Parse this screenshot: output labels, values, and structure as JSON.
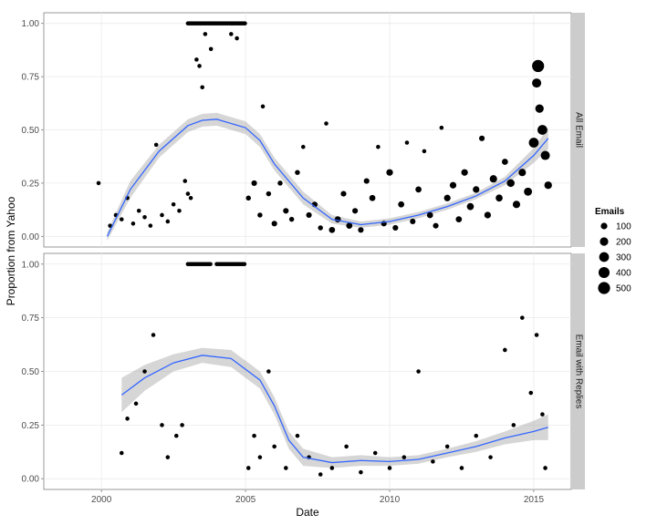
{
  "chart_data": {
    "type": "scatter",
    "title": "",
    "xlabel": "Date",
    "ylabel": "Proportion from Yahoo",
    "xlim": [
      1998.0,
      2016.3
    ],
    "ylim": [
      -0.05,
      1.05
    ],
    "x_ticks": [
      2000,
      2005,
      2010,
      2015
    ],
    "x_tick_labels": [
      "2000",
      "2005",
      "2010",
      "2015"
    ],
    "y_ticks": [
      0,
      0.25,
      0.5,
      0.75,
      1.0
    ],
    "y_tick_labels": [
      "0.00",
      "0.25",
      "0.50",
      "0.75",
      "1.00"
    ],
    "grid": true,
    "legend": {
      "title": "Emails",
      "position": "right",
      "entries": [
        {
          "label": "100",
          "value": 100
        },
        {
          "label": "200",
          "value": 200
        },
        {
          "label": "300",
          "value": 300
        },
        {
          "label": "400",
          "value": 400
        },
        {
          "label": "500",
          "value": 500
        }
      ]
    },
    "colors": {
      "points": "#000000",
      "smooth_line": "#3366FF",
      "ribbon": "#999999",
      "strip": "#cccccc",
      "grid": "#ebebeb"
    },
    "facets": [
      {
        "strip_label": "All Email",
        "smooth": {
          "x": [
            2000.2,
            2001,
            2002,
            2003,
            2003.5,
            2004,
            2005,
            2005.5,
            2006,
            2007,
            2008,
            2009,
            2010,
            2011,
            2012,
            2013,
            2014,
            2015,
            2015.5
          ],
          "y": [
            0.0,
            0.22,
            0.4,
            0.52,
            0.545,
            0.55,
            0.51,
            0.45,
            0.34,
            0.18,
            0.08,
            0.055,
            0.07,
            0.1,
            0.14,
            0.19,
            0.26,
            0.38,
            0.46
          ],
          "lower": [
            -0.02,
            0.18,
            0.37,
            0.49,
            0.515,
            0.52,
            0.48,
            0.42,
            0.31,
            0.15,
            0.06,
            0.04,
            0.055,
            0.085,
            0.125,
            0.175,
            0.24,
            0.345,
            0.41
          ],
          "upper": [
            0.02,
            0.26,
            0.43,
            0.55,
            0.575,
            0.58,
            0.54,
            0.48,
            0.37,
            0.21,
            0.1,
            0.07,
            0.085,
            0.115,
            0.155,
            0.205,
            0.28,
            0.415,
            0.51
          ]
        },
        "points": [
          {
            "x": 1999.9,
            "y": 0.25,
            "n": 20
          },
          {
            "x": 2000.3,
            "y": 0.05,
            "n": 20
          },
          {
            "x": 2000.5,
            "y": 0.1,
            "n": 20
          },
          {
            "x": 2000.7,
            "y": 0.08,
            "n": 20
          },
          {
            "x": 2000.9,
            "y": 0.18,
            "n": 20
          },
          {
            "x": 2001.1,
            "y": 0.06,
            "n": 20
          },
          {
            "x": 2001.3,
            "y": 0.12,
            "n": 20
          },
          {
            "x": 2001.5,
            "y": 0.09,
            "n": 20
          },
          {
            "x": 2001.7,
            "y": 0.05,
            "n": 20
          },
          {
            "x": 2001.9,
            "y": 0.43,
            "n": 20
          },
          {
            "x": 2002.1,
            "y": 0.1,
            "n": 20
          },
          {
            "x": 2002.3,
            "y": 0.07,
            "n": 20
          },
          {
            "x": 2002.5,
            "y": 0.15,
            "n": 20
          },
          {
            "x": 2002.7,
            "y": 0.12,
            "n": 20
          },
          {
            "x": 2002.9,
            "y": 0.26,
            "n": 20
          },
          {
            "x": 2003.0,
            "y": 0.2,
            "n": 20
          },
          {
            "x": 2003.1,
            "y": 0.18,
            "n": 20
          },
          {
            "x": 2003.3,
            "y": 0.83,
            "n": 20
          },
          {
            "x": 2003.4,
            "y": 0.8,
            "n": 20
          },
          {
            "x": 2003.5,
            "y": 0.7,
            "n": 20
          },
          {
            "x": 2003.6,
            "y": 0.95,
            "n": 20
          },
          {
            "x": 2003.8,
            "y": 0.88,
            "n": 20
          },
          {
            "x": 2004.5,
            "y": 0.95,
            "n": 20
          },
          {
            "x": 2004.7,
            "y": 0.93,
            "n": 20
          },
          {
            "x": 2005.1,
            "y": 0.18,
            "n": 40
          },
          {
            "x": 2005.3,
            "y": 0.25,
            "n": 60
          },
          {
            "x": 2005.5,
            "y": 0.1,
            "n": 40
          },
          {
            "x": 2005.6,
            "y": 0.61,
            "n": 20
          },
          {
            "x": 2005.8,
            "y": 0.2,
            "n": 40
          },
          {
            "x": 2006.0,
            "y": 0.06,
            "n": 60
          },
          {
            "x": 2006.2,
            "y": 0.25,
            "n": 40
          },
          {
            "x": 2006.4,
            "y": 0.12,
            "n": 60
          },
          {
            "x": 2006.6,
            "y": 0.08,
            "n": 40
          },
          {
            "x": 2006.8,
            "y": 0.3,
            "n": 40
          },
          {
            "x": 2007.0,
            "y": 0.42,
            "n": 20
          },
          {
            "x": 2007.2,
            "y": 0.1,
            "n": 60
          },
          {
            "x": 2007.4,
            "y": 0.15,
            "n": 60
          },
          {
            "x": 2007.6,
            "y": 0.04,
            "n": 40
          },
          {
            "x": 2007.8,
            "y": 0.53,
            "n": 20
          },
          {
            "x": 2008.0,
            "y": 0.03,
            "n": 80
          },
          {
            "x": 2008.2,
            "y": 0.08,
            "n": 80
          },
          {
            "x": 2008.4,
            "y": 0.2,
            "n": 60
          },
          {
            "x": 2008.6,
            "y": 0.05,
            "n": 80
          },
          {
            "x": 2008.8,
            "y": 0.12,
            "n": 60
          },
          {
            "x": 2009.0,
            "y": 0.03,
            "n": 60
          },
          {
            "x": 2009.2,
            "y": 0.26,
            "n": 60
          },
          {
            "x": 2009.4,
            "y": 0.18,
            "n": 80
          },
          {
            "x": 2009.6,
            "y": 0.42,
            "n": 20
          },
          {
            "x": 2009.8,
            "y": 0.06,
            "n": 60
          },
          {
            "x": 2010.0,
            "y": 0.3,
            "n": 100
          },
          {
            "x": 2010.2,
            "y": 0.04,
            "n": 60
          },
          {
            "x": 2010.4,
            "y": 0.15,
            "n": 80
          },
          {
            "x": 2010.6,
            "y": 0.44,
            "n": 20
          },
          {
            "x": 2010.8,
            "y": 0.07,
            "n": 60
          },
          {
            "x": 2011.0,
            "y": 0.22,
            "n": 80
          },
          {
            "x": 2011.2,
            "y": 0.4,
            "n": 20
          },
          {
            "x": 2011.4,
            "y": 0.1,
            "n": 80
          },
          {
            "x": 2011.6,
            "y": 0.05,
            "n": 60
          },
          {
            "x": 2011.8,
            "y": 0.51,
            "n": 20
          },
          {
            "x": 2012.0,
            "y": 0.18,
            "n": 100
          },
          {
            "x": 2012.2,
            "y": 0.24,
            "n": 100
          },
          {
            "x": 2012.4,
            "y": 0.08,
            "n": 80
          },
          {
            "x": 2012.6,
            "y": 0.3,
            "n": 100
          },
          {
            "x": 2012.8,
            "y": 0.14,
            "n": 120
          },
          {
            "x": 2013.0,
            "y": 0.22,
            "n": 100
          },
          {
            "x": 2013.2,
            "y": 0.46,
            "n": 60
          },
          {
            "x": 2013.4,
            "y": 0.1,
            "n": 100
          },
          {
            "x": 2013.6,
            "y": 0.27,
            "n": 140
          },
          {
            "x": 2013.8,
            "y": 0.18,
            "n": 120
          },
          {
            "x": 2014.0,
            "y": 0.35,
            "n": 80
          },
          {
            "x": 2014.2,
            "y": 0.25,
            "n": 160
          },
          {
            "x": 2014.4,
            "y": 0.15,
            "n": 140
          },
          {
            "x": 2014.6,
            "y": 0.3,
            "n": 140
          },
          {
            "x": 2014.8,
            "y": 0.21,
            "n": 180
          },
          {
            "x": 2015.0,
            "y": 0.44,
            "n": 300
          },
          {
            "x": 2015.1,
            "y": 0.72,
            "n": 250
          },
          {
            "x": 2015.15,
            "y": 0.8,
            "n": 500
          },
          {
            "x": 2015.2,
            "y": 0.6,
            "n": 200
          },
          {
            "x": 2015.3,
            "y": 0.5,
            "n": 300
          },
          {
            "x": 2015.4,
            "y": 0.38,
            "n": 250
          },
          {
            "x": 2015.5,
            "y": 0.24,
            "n": 150
          }
        ],
        "band_points": [
          {
            "x_start": 2003.0,
            "x_end": 2005.0,
            "y": 1.0,
            "n": 20
          }
        ]
      },
      {
        "strip_label": "Email with Replies",
        "smooth": {
          "x": [
            2000.7,
            2001.5,
            2002.5,
            2003.5,
            2004.5,
            2005.5,
            2006.0,
            2006.5,
            2007.0,
            2008.0,
            2009.0,
            2010.0,
            2011.0,
            2012.0,
            2013.0,
            2014.0,
            2015.0,
            2015.5
          ],
          "y": [
            0.39,
            0.47,
            0.54,
            0.575,
            0.56,
            0.46,
            0.34,
            0.18,
            0.1,
            0.075,
            0.085,
            0.08,
            0.09,
            0.12,
            0.15,
            0.19,
            0.22,
            0.24
          ],
          "lower": [
            0.31,
            0.41,
            0.5,
            0.54,
            0.52,
            0.42,
            0.3,
            0.14,
            0.06,
            0.05,
            0.06,
            0.06,
            0.07,
            0.1,
            0.125,
            0.16,
            0.18,
            0.18
          ],
          "upper": [
            0.47,
            0.53,
            0.58,
            0.61,
            0.6,
            0.5,
            0.38,
            0.22,
            0.14,
            0.1,
            0.11,
            0.1,
            0.11,
            0.14,
            0.175,
            0.22,
            0.27,
            0.3
          ]
        },
        "points": [
          {
            "x": 2000.7,
            "y": 0.12,
            "n": 20
          },
          {
            "x": 2000.9,
            "y": 0.28,
            "n": 20
          },
          {
            "x": 2001.2,
            "y": 0.35,
            "n": 20
          },
          {
            "x": 2001.5,
            "y": 0.5,
            "n": 20
          },
          {
            "x": 2001.8,
            "y": 0.67,
            "n": 20
          },
          {
            "x": 2002.1,
            "y": 0.25,
            "n": 20
          },
          {
            "x": 2002.3,
            "y": 0.1,
            "n": 20
          },
          {
            "x": 2002.6,
            "y": 0.2,
            "n": 20
          },
          {
            "x": 2002.8,
            "y": 0.25,
            "n": 20
          },
          {
            "x": 2005.1,
            "y": 0.05,
            "n": 20
          },
          {
            "x": 2005.3,
            "y": 0.2,
            "n": 20
          },
          {
            "x": 2005.5,
            "y": 0.1,
            "n": 20
          },
          {
            "x": 2005.8,
            "y": 0.5,
            "n": 20
          },
          {
            "x": 2006.0,
            "y": 0.15,
            "n": 20
          },
          {
            "x": 2006.4,
            "y": 0.05,
            "n": 20
          },
          {
            "x": 2006.8,
            "y": 0.2,
            "n": 20
          },
          {
            "x": 2007.2,
            "y": 0.1,
            "n": 20
          },
          {
            "x": 2007.6,
            "y": 0.02,
            "n": 20
          },
          {
            "x": 2008.0,
            "y": 0.05,
            "n": 20
          },
          {
            "x": 2008.5,
            "y": 0.15,
            "n": 20
          },
          {
            "x": 2009.0,
            "y": 0.03,
            "n": 20
          },
          {
            "x": 2009.5,
            "y": 0.12,
            "n": 20
          },
          {
            "x": 2010.0,
            "y": 0.05,
            "n": 20
          },
          {
            "x": 2010.5,
            "y": 0.1,
            "n": 20
          },
          {
            "x": 2011.0,
            "y": 0.5,
            "n": 20
          },
          {
            "x": 2011.5,
            "y": 0.08,
            "n": 20
          },
          {
            "x": 2012.0,
            "y": 0.15,
            "n": 20
          },
          {
            "x": 2012.5,
            "y": 0.05,
            "n": 20
          },
          {
            "x": 2013.0,
            "y": 0.2,
            "n": 20
          },
          {
            "x": 2013.5,
            "y": 0.1,
            "n": 20
          },
          {
            "x": 2014.0,
            "y": 0.6,
            "n": 20
          },
          {
            "x": 2014.3,
            "y": 0.25,
            "n": 20
          },
          {
            "x": 2014.6,
            "y": 0.75,
            "n": 20
          },
          {
            "x": 2014.9,
            "y": 0.4,
            "n": 20
          },
          {
            "x": 2015.1,
            "y": 0.67,
            "n": 20
          },
          {
            "x": 2015.3,
            "y": 0.3,
            "n": 20
          },
          {
            "x": 2015.4,
            "y": 0.05,
            "n": 20
          }
        ],
        "band_points": [
          {
            "x_start": 2003.0,
            "x_end": 2003.8,
            "y": 1.0,
            "n": 20
          },
          {
            "x_start": 2004.0,
            "x_end": 2005.0,
            "y": 1.0,
            "n": 20
          }
        ]
      }
    ]
  }
}
